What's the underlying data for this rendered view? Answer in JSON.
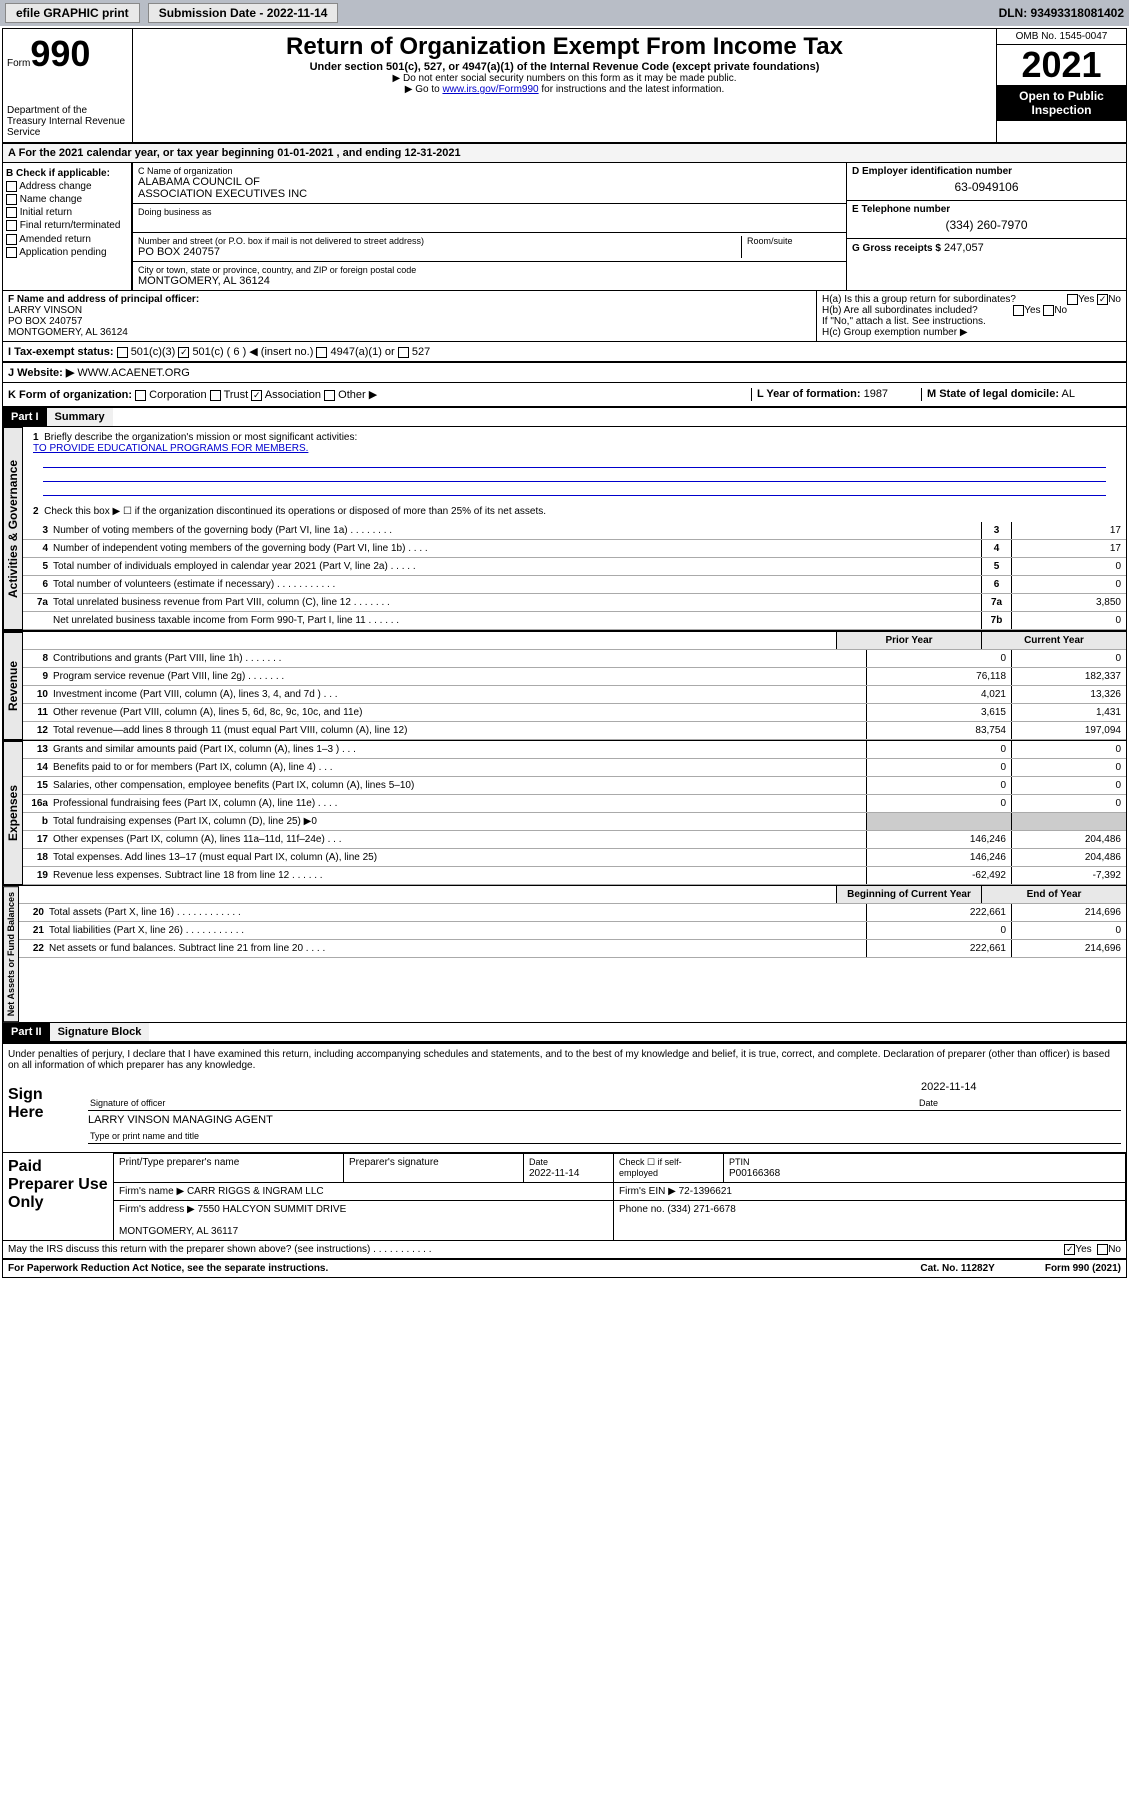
{
  "topbar": {
    "efile": "efile GRAPHIC print",
    "submission": "Submission Date - 2022-11-14",
    "dln": "DLN: 93493318081402"
  },
  "header": {
    "form_label": "Form",
    "form_num": "990",
    "dept": "Department of the Treasury\nInternal Revenue Service",
    "title": "Return of Organization Exempt From Income Tax",
    "sub1": "Under section 501(c), 527, or 4947(a)(1) of the Internal Revenue Code (except private foundations)",
    "sub2": "▶ Do not enter social security numbers on this form as it may be made public.",
    "sub3_pre": "▶ Go to ",
    "sub3_link": "www.irs.gov/Form990",
    "sub3_post": " for instructions and the latest information.",
    "omb": "OMB No. 1545-0047",
    "year": "2021",
    "open": "Open to Public Inspection"
  },
  "period": "For the 2021 calendar year, or tax year beginning 01-01-2021   , and ending 12-31-2021",
  "checkB": {
    "hdr": "B Check if applicable:",
    "addr": "Address change",
    "name": "Name change",
    "init": "Initial return",
    "final": "Final return/terminated",
    "amend": "Amended return",
    "app": "Application pending"
  },
  "org": {
    "name_lbl": "C Name of organization",
    "name": "ALABAMA COUNCIL OF\nASSOCIATION EXECUTIVES INC",
    "dba_lbl": "Doing business as",
    "addr_lbl": "Number and street (or P.O. box if mail is not delivered to street address)",
    "room_lbl": "Room/suite",
    "addr": "PO BOX 240757",
    "city_lbl": "City or town, state or province, country, and ZIP or foreign postal code",
    "city": "MONTGOMERY, AL  36124"
  },
  "ein": {
    "lbl": "D Employer identification number",
    "val": "63-0949106"
  },
  "tel": {
    "lbl": "E Telephone number",
    "val": "(334) 260-7970"
  },
  "gross": {
    "lbl": "G Gross receipts $",
    "val": "247,057"
  },
  "officer": {
    "lbl": "F  Name and address of principal officer:",
    "name": "LARRY VINSON",
    "addr": "PO BOX 240757\nMONTGOMERY, AL  36124"
  },
  "h": {
    "a": "H(a)  Is this a group return for subordinates?",
    "b": "H(b)  Are all subordinates included?",
    "b2": "If \"No,\" attach a list. See instructions.",
    "c": "H(c)  Group exemption number ▶",
    "no_checked": "☑"
  },
  "tax_status": {
    "lbl": "I   Tax-exempt status:",
    "c3": "501(c)(3)",
    "c": "501(c) ( 6 ) ◀ (insert no.)",
    "a1": "4947(a)(1) or",
    "527": "527"
  },
  "website": {
    "lbl": "J   Website: ▶",
    "val": "WWW.ACAENET.ORG"
  },
  "k": {
    "lbl": "K Form of organization:",
    "corp": "Corporation",
    "trust": "Trust",
    "assoc": "Association",
    "other": "Other ▶"
  },
  "l": {
    "lbl": "L Year of formation:",
    "val": "1987"
  },
  "m": {
    "lbl": "M State of legal domicile:",
    "val": "AL"
  },
  "part1": {
    "hdr": "Part I",
    "title": "Summary"
  },
  "summary": {
    "q1": "Briefly describe the organization's mission or most significant activities:",
    "mission": "TO PROVIDE EDUCATIONAL PROGRAMS FOR MEMBERS.",
    "q2": "Check this box ▶ ☐  if the organization discontinued its operations or disposed of more than 25% of its net assets.",
    "lines": [
      {
        "n": "3",
        "d": "Number of voting members of the governing body (Part VI, line 1a)  .  .  .  .  .  .  .  .",
        "b": "3",
        "v": "17"
      },
      {
        "n": "4",
        "d": "Number of independent voting members of the governing body (Part VI, line 1b)  .  .  .  .",
        "b": "4",
        "v": "17"
      },
      {
        "n": "5",
        "d": "Total number of individuals employed in calendar year 2021 (Part V, line 2a)  .  .  .  .  .",
        "b": "5",
        "v": "0"
      },
      {
        "n": "6",
        "d": "Total number of volunteers (estimate if necessary)  .  .  .  .  .  .  .  .  .  .  .",
        "b": "6",
        "v": "0"
      },
      {
        "n": "7a",
        "d": "Total unrelated business revenue from Part VIII, column (C), line 12  .  .  .  .  .  .  .",
        "b": "7a",
        "v": "3,850"
      },
      {
        "n": "",
        "d": "Net unrelated business taxable income from Form 990-T, Part I, line 11  .  .  .  .  .  .",
        "b": "7b",
        "v": "0"
      }
    ],
    "col_prior": "Prior Year",
    "col_curr": "Current Year",
    "rev": [
      {
        "n": "8",
        "d": "Contributions and grants (Part VIII, line 1h)  .  .  .  .  .  .  .",
        "p": "0",
        "c": "0"
      },
      {
        "n": "9",
        "d": "Program service revenue (Part VIII, line 2g)  .  .  .  .  .  .  .",
        "p": "76,118",
        "c": "182,337"
      },
      {
        "n": "10",
        "d": "Investment income (Part VIII, column (A), lines 3, 4, and 7d )  .  .  .",
        "p": "4,021",
        "c": "13,326"
      },
      {
        "n": "11",
        "d": "Other revenue (Part VIII, column (A), lines 5, 6d, 8c, 9c, 10c, and 11e)",
        "p": "3,615",
        "c": "1,431"
      },
      {
        "n": "12",
        "d": "Total revenue—add lines 8 through 11 (must equal Part VIII, column (A), line 12)",
        "p": "83,754",
        "c": "197,094"
      }
    ],
    "exp": [
      {
        "n": "13",
        "d": "Grants and similar amounts paid (Part IX, column (A), lines 1–3 )  .  .  .",
        "p": "0",
        "c": "0"
      },
      {
        "n": "14",
        "d": "Benefits paid to or for members (Part IX, column (A), line 4)  .  .  .",
        "p": "0",
        "c": "0"
      },
      {
        "n": "15",
        "d": "Salaries, other compensation, employee benefits (Part IX, column (A), lines 5–10)",
        "p": "0",
        "c": "0"
      },
      {
        "n": "16a",
        "d": "Professional fundraising fees (Part IX, column (A), line 11e)  .  .  .  .",
        "p": "0",
        "c": "0"
      },
      {
        "n": "b",
        "d": "Total fundraising expenses (Part IX, column (D), line 25) ▶0",
        "p": "",
        "c": "",
        "grey": true
      },
      {
        "n": "17",
        "d": "Other expenses (Part IX, column (A), lines 11a–11d, 11f–24e)  .  .  .",
        "p": "146,246",
        "c": "204,486"
      },
      {
        "n": "18",
        "d": "Total expenses. Add lines 13–17 (must equal Part IX, column (A), line 25)",
        "p": "146,246",
        "c": "204,486"
      },
      {
        "n": "19",
        "d": "Revenue less expenses. Subtract line 18 from line 12  .  .  .  .  .  .",
        "p": "-62,492",
        "c": "-7,392"
      }
    ],
    "col_beg": "Beginning of Current Year",
    "col_end": "End of Year",
    "net": [
      {
        "n": "20",
        "d": "Total assets (Part X, line 16)  .  .  .  .  .  .  .  .  .  .  .  .",
        "p": "222,661",
        "c": "214,696"
      },
      {
        "n": "21",
        "d": "Total liabilities (Part X, line 26)  .  .  .  .  .  .  .  .  .  .  .",
        "p": "0",
        "c": "0"
      },
      {
        "n": "22",
        "d": "Net assets or fund balances. Subtract line 21 from line 20  .  .  .  .",
        "p": "222,661",
        "c": "214,696"
      }
    ]
  },
  "vtabs": {
    "ag": "Activities & Governance",
    "rev": "Revenue",
    "exp": "Expenses",
    "net": "Net Assets or Fund Balances"
  },
  "part2": {
    "hdr": "Part II",
    "title": "Signature Block"
  },
  "sig": {
    "decl": "Under penalties of perjury, I declare that I have examined this return, including accompanying schedules and statements, and to the best of my knowledge and belief, it is true, correct, and complete. Declaration of preparer (other than officer) is based on all information of which preparer has any knowledge.",
    "sign_here": "Sign Here",
    "date": "2022-11-14",
    "sig_officer": "Signature of officer",
    "date_lbl": "Date",
    "name": "LARRY VINSON  MANAGING AGENT",
    "name_lbl": "Type or print name and title",
    "paid": "Paid Preparer Use Only",
    "prep_name_lbl": "Print/Type preparer's name",
    "prep_sig_lbl": "Preparer's signature",
    "prep_date": "2022-11-14",
    "check_lbl": "Check ☐ if self-employed",
    "ptin_lbl": "PTIN",
    "ptin": "P00166368",
    "firm_name_lbl": "Firm's name    ▶",
    "firm_name": "CARR RIGGS & INGRAM LLC",
    "firm_ein_lbl": "Firm's EIN ▶",
    "firm_ein": "72-1396621",
    "firm_addr_lbl": "Firm's address ▶",
    "firm_addr": "7550 HALCYON SUMMIT DRIVE\n\nMONTGOMERY, AL  36117",
    "phone_lbl": "Phone no.",
    "phone": "(334) 271-6678",
    "discuss": "May the IRS discuss this return with the preparer shown above? (see instructions)  .  .  .  .  .  .  .  .  .  .  .",
    "yes_checked": "☑"
  },
  "footer": {
    "left": "For Paperwork Reduction Act Notice, see the separate instructions.",
    "mid": "Cat. No. 11282Y",
    "right": "Form 990 (2021)"
  }
}
